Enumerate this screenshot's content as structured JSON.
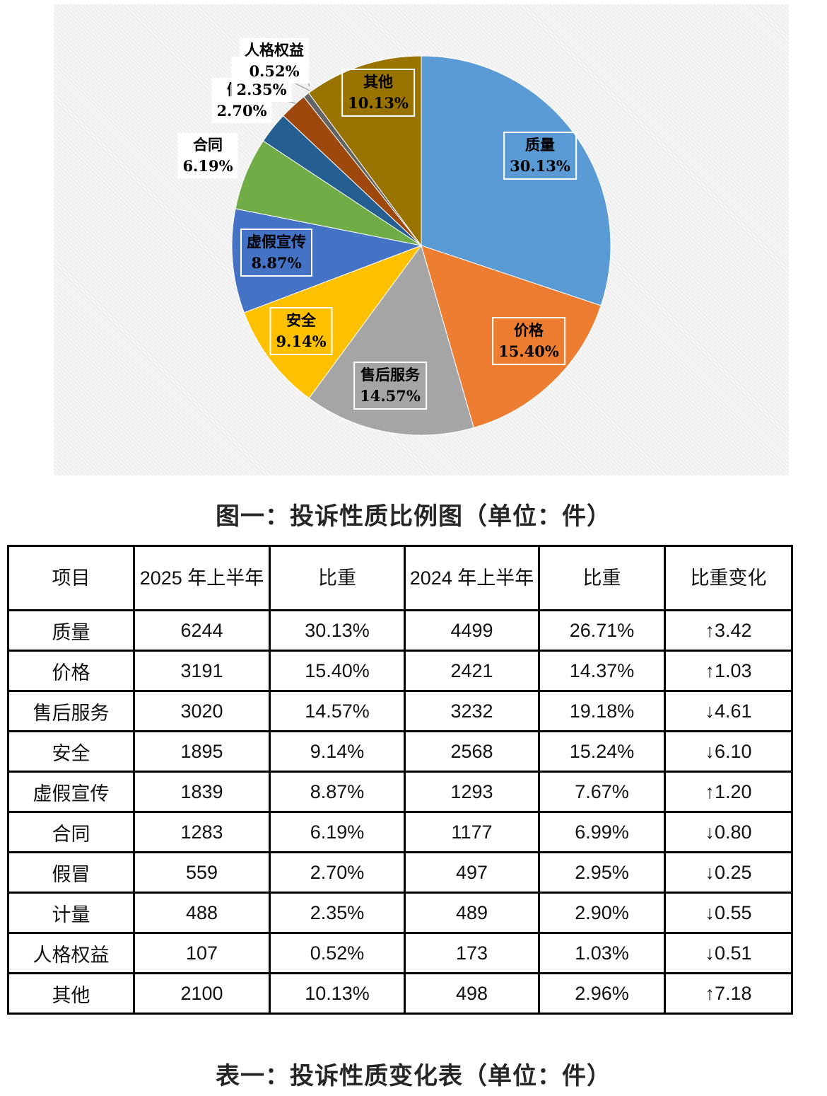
{
  "chart_data": {
    "type": "pie",
    "slices": [
      {
        "label": "质量",
        "value": 30.13,
        "display": "30.13%",
        "color": "#5B9BD5"
      },
      {
        "label": "价格",
        "value": 15.4,
        "display": "15.40%",
        "color": "#ED7D31"
      },
      {
        "label": "售后服务",
        "value": 14.57,
        "display": "14.57%",
        "color": "#A5A5A5"
      },
      {
        "label": "安全",
        "value": 9.14,
        "display": "9.14%",
        "color": "#FFC000"
      },
      {
        "label": "虚假宣传",
        "value": 8.87,
        "display": "8.87%",
        "color": "#4472C4"
      },
      {
        "label": "合同",
        "value": 6.19,
        "display": "6.19%",
        "color": "#70AD47"
      },
      {
        "label": "假冒",
        "value": 2.7,
        "display": "2.70%",
        "color": "#255E91"
      },
      {
        "label": "计量",
        "value": 2.35,
        "display": "2.35%",
        "color": "#9E480E"
      },
      {
        "label": "人格权益",
        "value": 0.52,
        "display": "0.52%",
        "color": "#636363"
      },
      {
        "label": "其他",
        "value": 10.13,
        "display": "10.13%",
        "color": "#997300"
      }
    ]
  },
  "figure_caption": "图一：投诉性质比例图（单位：件）",
  "table": {
    "headers": [
      "项目",
      "2025 年上半年",
      "比重",
      "2024 年上半年",
      "比重",
      "比重变化"
    ],
    "rows": [
      [
        "质量",
        "6244",
        "30.13%",
        "4499",
        "26.71%",
        "↑3.42"
      ],
      [
        "价格",
        "3191",
        "15.40%",
        "2421",
        "14.37%",
        "↑1.03"
      ],
      [
        "售后服务",
        "3020",
        "14.57%",
        "3232",
        "19.18%",
        "↓4.61"
      ],
      [
        "安全",
        "1895",
        "9.14%",
        "2568",
        "15.24%",
        "↓6.10"
      ],
      [
        "虚假宣传",
        "1839",
        "8.87%",
        "1293",
        "7.67%",
        "↑1.20"
      ],
      [
        "合同",
        "1283",
        "6.19%",
        "1177",
        "6.99%",
        "↓0.80"
      ],
      [
        "假冒",
        "559",
        "2.70%",
        "497",
        "2.95%",
        "↓0.25"
      ],
      [
        "计量",
        "488",
        "2.35%",
        "489",
        "2.90%",
        "↓0.55"
      ],
      [
        "人格权益",
        "107",
        "0.52%",
        "173",
        "1.03%",
        "↓0.51"
      ],
      [
        "其他",
        "2100",
        "10.13%",
        "498",
        "2.96%",
        "↑7.18"
      ]
    ]
  },
  "table_caption": "表一：投诉性质变化表（单位：件）"
}
